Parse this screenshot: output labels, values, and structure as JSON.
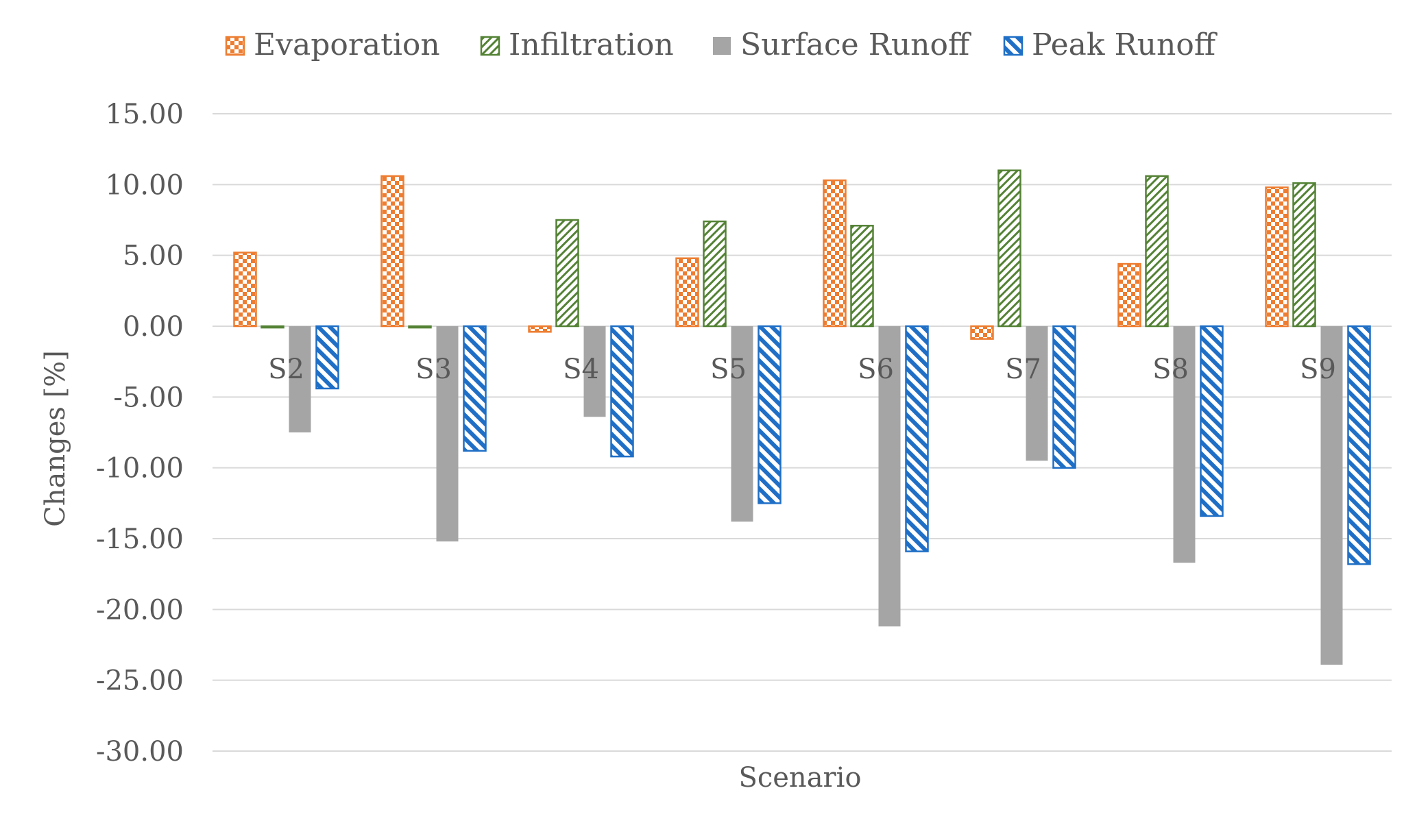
{
  "chart_data": {
    "type": "bar",
    "title": "",
    "xlabel": "Scenario",
    "ylabel": "Changes [%]",
    "ylim": [
      -30,
      15
    ],
    "yticks": [
      15,
      10,
      5,
      0,
      -5,
      -10,
      -15,
      -20,
      -25,
      -30
    ],
    "ytick_labels": [
      "15.00",
      "10.00",
      "5.00",
      "0.00",
      "-5.00",
      "-10.00",
      "-15.00",
      "-20.00",
      "-25.00",
      "-30.00"
    ],
    "grid": true,
    "legend_position": "top",
    "categories": [
      "S2",
      "S3",
      "S4",
      "S5",
      "S6",
      "S7",
      "S8",
      "S9"
    ],
    "series": [
      {
        "name": "Evaporation",
        "values": [
          5.2,
          10.6,
          -0.4,
          4.8,
          10.3,
          -0.9,
          4.4,
          9.8
        ],
        "color": "#ED7D31",
        "pattern": "checker"
      },
      {
        "name": "Infiltration",
        "values": [
          -0.1,
          -0.1,
          7.5,
          7.4,
          7.1,
          11.0,
          10.6,
          10.1
        ],
        "color": "#548235",
        "pattern": "diagonal-light"
      },
      {
        "name": "Surface Runoff",
        "values": [
          -7.5,
          -15.2,
          -6.4,
          -13.8,
          -21.2,
          -9.5,
          -16.7,
          -23.9
        ],
        "color": "#A5A5A5",
        "pattern": "solid"
      },
      {
        "name": "Peak Runoff",
        "values": [
          -4.4,
          -8.8,
          -9.2,
          -12.5,
          -15.9,
          -10.0,
          -13.4,
          -16.8
        ],
        "color": "#1F6FC6",
        "pattern": "diagonal-wide"
      }
    ]
  }
}
